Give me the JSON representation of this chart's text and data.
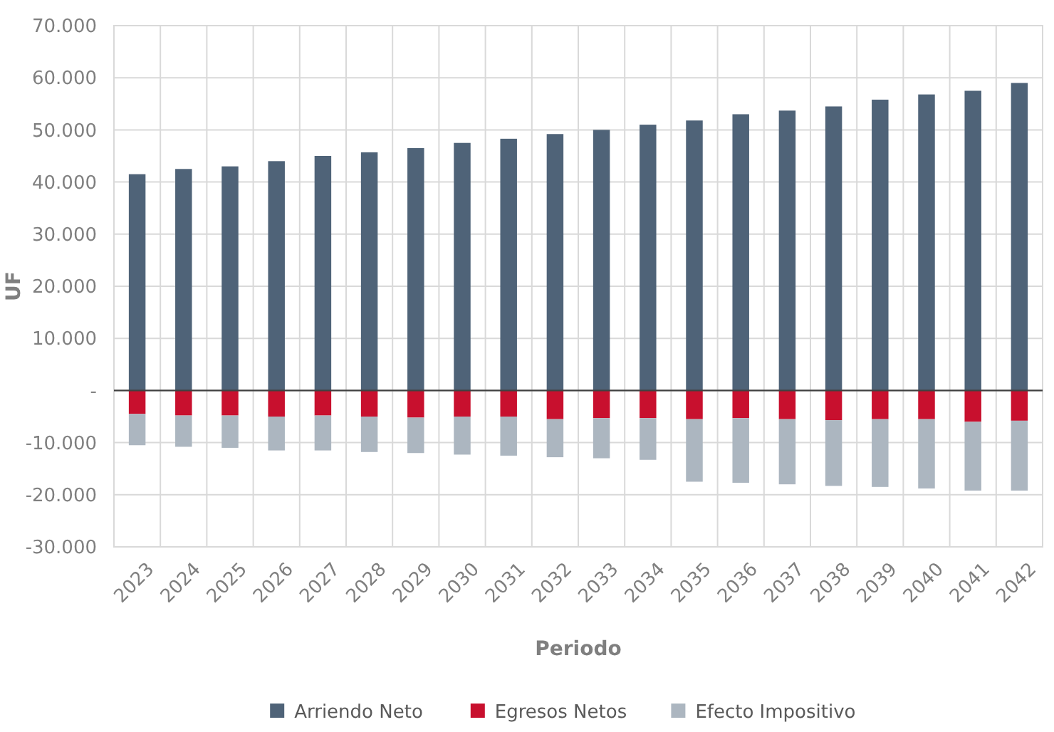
{
  "chart_data": {
    "type": "bar",
    "stacked": true,
    "xlabel": "Periodo",
    "ylabel": "UF",
    "categories": [
      "2023",
      "2024",
      "2025",
      "2026",
      "2027",
      "2028",
      "2029",
      "2030",
      "2031",
      "2032",
      "2033",
      "2034",
      "2035",
      "2036",
      "2037",
      "2038",
      "2039",
      "2040",
      "2041",
      "2042"
    ],
    "series": [
      {
        "name": "Arriendo Neto",
        "color": "#4f6378",
        "values": [
          41500,
          42500,
          43000,
          44000,
          45000,
          45700,
          46500,
          47500,
          48300,
          49200,
          50000,
          51000,
          51800,
          53000,
          53700,
          54500,
          55800,
          56800,
          57500,
          59000
        ]
      },
      {
        "name": "Egresos Netos",
        "color": "#c8102e",
        "values": [
          -4500,
          -4800,
          -4800,
          -5000,
          -4800,
          -5000,
          -5200,
          -5000,
          -5000,
          -5500,
          -5300,
          -5300,
          -5500,
          -5300,
          -5500,
          -5700,
          -5500,
          -5500,
          -6000,
          -5800
        ]
      },
      {
        "name": "Efecto Impositivo",
        "color": "#acb6c0",
        "values": [
          -6000,
          -6000,
          -6200,
          -6500,
          -6700,
          -6800,
          -6800,
          -7300,
          -7500,
          -7300,
          -7700,
          -8000,
          -12000,
          -12400,
          -12500,
          -12600,
          -13000,
          -13300,
          -13200,
          -13400
        ]
      }
    ],
    "ylim": [
      -30000,
      70000
    ],
    "yticks": [
      {
        "value": -30000,
        "label": "-30.000"
      },
      {
        "value": -20000,
        "label": "-20.000"
      },
      {
        "value": -10000,
        "label": "-10.000"
      },
      {
        "value": 0,
        "label": "-"
      },
      {
        "value": 10000,
        "label": "10.000"
      },
      {
        "value": 20000,
        "label": "20.000"
      },
      {
        "value": 30000,
        "label": "30.000"
      },
      {
        "value": 40000,
        "label": "40.000"
      },
      {
        "value": 50000,
        "label": "50.000"
      },
      {
        "value": 60000,
        "label": "60.000"
      },
      {
        "value": 70000,
        "label": "70.000"
      }
    ],
    "grid": true,
    "legend": "bottom"
  }
}
